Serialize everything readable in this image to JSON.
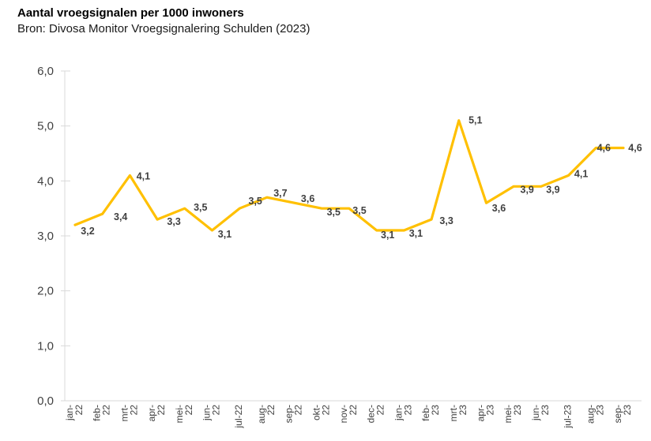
{
  "chart_data": {
    "type": "line",
    "title": "Aantal vroegsignalen per 1000 inwoners",
    "source": "Bron: Divosa Monitor Vroegsignalering Schulden (2023)",
    "categories": [
      "jan-22",
      "feb-22",
      "mrt-22",
      "apr-22",
      "mei-22",
      "jun-22",
      "jul-22",
      "aug-22",
      "sep-22",
      "okt-22",
      "nov-22",
      "dec-22",
      "jan-23",
      "feb-23",
      "mrt-23",
      "apr-23",
      "mei-23",
      "jun-23",
      "jul-23",
      "aug-23",
      "sep-23"
    ],
    "x_tick_lines": [
      [
        "jan-",
        "22"
      ],
      [
        "feb-",
        "22"
      ],
      [
        "mrt-",
        "22"
      ],
      [
        "apr-",
        "22"
      ],
      [
        "mei-",
        "22"
      ],
      [
        "jun-",
        "22"
      ],
      [
        "jul-22"
      ],
      [
        "aug-",
        "22"
      ],
      [
        "sep-",
        "22"
      ],
      [
        "okt-",
        "22"
      ],
      [
        "nov-",
        "22"
      ],
      [
        "dec-",
        "22"
      ],
      [
        "jan-",
        "23"
      ],
      [
        "feb-",
        "23"
      ],
      [
        "mrt-",
        "23"
      ],
      [
        "apr-",
        "23"
      ],
      [
        "mei-",
        "23"
      ],
      [
        "jun-",
        "23"
      ],
      [
        "jul-23"
      ],
      [
        "aug-",
        "23"
      ],
      [
        "sep-",
        "23"
      ]
    ],
    "values": [
      3.2,
      3.4,
      4.1,
      3.3,
      3.5,
      3.1,
      3.5,
      3.7,
      3.6,
      3.5,
      3.5,
      3.1,
      3.1,
      3.3,
      5.1,
      3.6,
      3.9,
      3.9,
      4.1,
      4.6,
      4.6
    ],
    "value_labels": [
      "3,2",
      "3,4",
      "4,1",
      "3,3",
      "3,5",
      "3,1",
      "3,5",
      "3,7",
      "3,6",
      "3,5",
      "3,5",
      "3,1",
      "3,1",
      "3,3",
      "5,1",
      "3,6",
      "3,9",
      "3,9",
      "4,1",
      "4,6",
      "4,6"
    ],
    "y_ticks": [
      {
        "v": 0,
        "label": "0,0"
      },
      {
        "v": 1,
        "label": "1,0"
      },
      {
        "v": 2,
        "label": "2,0"
      },
      {
        "v": 3,
        "label": "3,0"
      },
      {
        "v": 4,
        "label": "4,0"
      },
      {
        "v": 5,
        "label": "5,0"
      },
      {
        "v": 6,
        "label": "6,0"
      }
    ],
    "ylim": [
      0,
      6
    ],
    "xlabel": "",
    "ylabel": "",
    "grid": false,
    "legend": false,
    "line_color": "#FFC000",
    "label_color": "#404040",
    "axis_text_color": "#404040",
    "axis_line_color": "#D9D9D9"
  }
}
